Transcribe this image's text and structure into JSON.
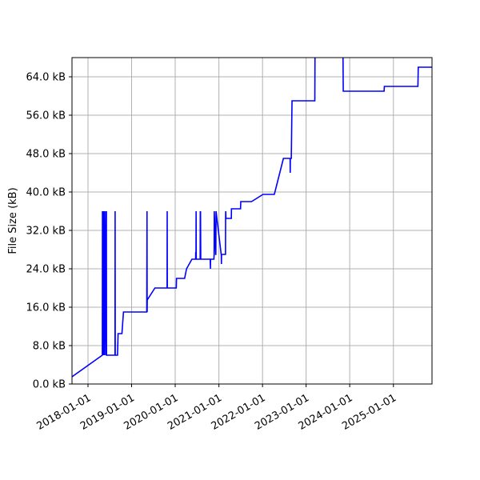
{
  "chart_data": {
    "type": "line",
    "title": "",
    "xlabel": "",
    "ylabel": "File Size (kB)",
    "grid": true,
    "line_color": "#0000ff",
    "grid_color": "#b0b0b0",
    "xlim": [
      "2017-08-20",
      "2025-11-20"
    ],
    "ylim": [
      0,
      68
    ],
    "x_ticks": [
      "2018-01-01",
      "2019-01-01",
      "2020-01-01",
      "2021-01-01",
      "2022-01-01",
      "2023-01-01",
      "2024-01-01",
      "2025-01-01"
    ],
    "y_ticks": [
      0,
      8,
      16,
      24,
      32,
      40,
      48,
      56,
      64
    ],
    "y_tick_labels": [
      "0.0 kB",
      "8.0 kB",
      "16.0 kB",
      "24.0 kB",
      "32.0 kB",
      "40.0 kB",
      "48.0 kB",
      "56.0 kB",
      "64.0 kB"
    ],
    "series": [
      {
        "x": [
          "2017-08-20",
          "2018-05-01",
          "2018-05-02",
          "2018-05-03",
          "2018-05-07",
          "2018-05-08",
          "2018-05-12",
          "2018-05-13",
          "2018-05-20",
          "2018-05-21",
          "2018-06-01",
          "2018-06-02",
          "2018-06-04",
          "2018-06-05",
          "2018-06-10",
          "2018-08-15",
          "2018-08-16",
          "2018-08-17",
          "2018-08-18",
          "2018-09-05",
          "2018-09-10",
          "2018-10-10",
          "2018-10-12",
          "2018-10-25",
          "2018-11-01",
          "2019-01-05",
          "2019-05-08",
          "2019-05-10",
          "2019-05-11",
          "2019-05-12",
          "2019-07-15",
          "2019-10-25",
          "2019-10-26",
          "2019-10-27",
          "2020-01-10",
          "2020-01-12",
          "2020-03-20",
          "2020-04-05",
          "2020-05-20",
          "2020-06-20",
          "2020-06-21",
          "2020-06-23",
          "2020-06-24",
          "2020-06-25",
          "2020-07-28",
          "2020-07-29",
          "2020-07-30",
          "2020-07-31",
          "2020-08-02",
          "2020-10-20",
          "2020-10-22",
          "2020-10-23",
          "2020-11-20",
          "2020-11-22",
          "2020-11-23",
          "2020-12-05",
          "2020-12-06",
          "2020-12-08",
          "2021-01-20",
          "2021-01-21",
          "2021-01-22",
          "2021-01-23",
          "2021-02-25",
          "2021-02-26",
          "2021-02-27",
          "2021-03-01",
          "2021-04-15",
          "2021-04-16",
          "2021-04-18",
          "2021-04-20",
          "2021-07-01",
          "2021-07-03",
          "2021-09-28",
          "2021-10-01",
          "2022-01-05",
          "2022-01-10",
          "2022-04-10",
          "2022-06-25",
          "2022-08-05",
          "2022-08-20",
          "2022-08-21",
          "2022-08-22",
          "2022-08-30",
          "2022-09-05",
          "2022-09-06",
          "2022-09-10",
          "2022-09-12",
          "2023-03-15",
          "2023-03-17",
          "2023-11-05",
          "2023-11-08",
          "2024-10-15",
          "2024-10-17",
          "2025-07-25",
          "2025-07-28",
          "2025-11-20"
        ],
        "y": [
          1.5,
          6,
          36,
          6,
          36,
          6,
          36,
          6,
          36,
          6,
          36,
          6,
          36,
          6,
          6,
          6,
          36,
          6,
          6,
          6,
          10.5,
          10.5,
          10.5,
          15,
          15,
          15,
          15,
          36,
          15,
          17.5,
          20,
          20,
          36,
          20,
          20,
          22,
          22,
          24,
          26,
          26,
          27.5,
          26,
          36,
          26,
          26,
          36,
          26,
          36,
          26,
          26,
          24,
          26,
          26,
          27,
          36,
          27,
          27,
          36,
          27,
          27,
          25,
          27,
          27,
          34.5,
          36,
          34.5,
          34.5,
          36.5,
          36.5,
          36.5,
          36.5,
          38,
          38,
          38,
          39.5,
          39.5,
          39.5,
          47,
          47,
          47,
          44,
          47,
          47,
          59,
          59,
          59,
          59,
          59,
          72,
          72,
          61,
          61,
          62,
          62,
          66,
          66
        ]
      }
    ]
  }
}
